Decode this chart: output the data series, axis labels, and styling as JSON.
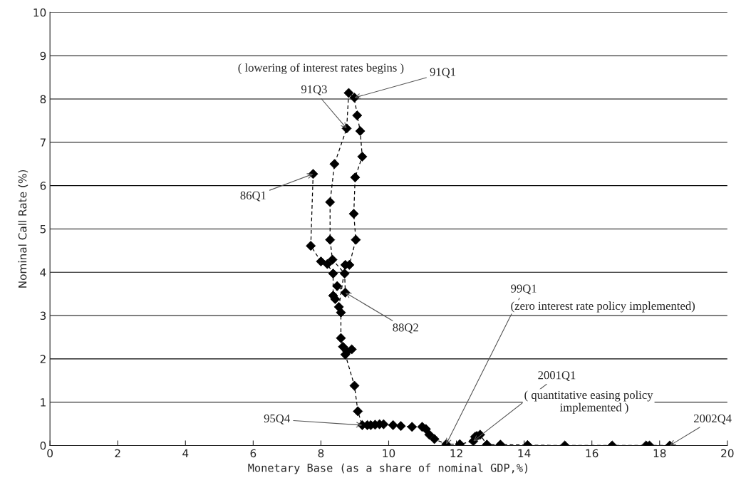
{
  "chart_data": {
    "type": "line",
    "xlabel": "Monetary Base (as a share of nominal GDP,%)",
    "ylabel": "Nominal Call Rate (%)",
    "xlim": [
      0,
      20
    ],
    "ylim": [
      0,
      10
    ],
    "xticks": [
      0,
      2,
      4,
      6,
      8,
      10,
      12,
      14,
      16,
      18,
      20
    ],
    "yticks": [
      0,
      1,
      2,
      3,
      4,
      5,
      6,
      7,
      8,
      9,
      10
    ],
    "grid": "y",
    "marker": "diamond",
    "line_style": "dashed",
    "legend": false,
    "series": [
      {
        "color": "#000000",
        "x": [
          7.77,
          7.7,
          8.0,
          8.19,
          8.36,
          8.36,
          8.42,
          8.48,
          8.72,
          8.7,
          8.34,
          8.27,
          8.27,
          8.4,
          8.76,
          8.82,
          8.99,
          9.07,
          9.16,
          9.22,
          9.01,
          8.97,
          9.03,
          8.84,
          8.72,
          8.53,
          8.59,
          8.59,
          8.65,
          8.78,
          8.91,
          8.72,
          8.99,
          9.09,
          9.22,
          9.37,
          9.47,
          9.6,
          9.73,
          9.85,
          10.13,
          10.36,
          10.69,
          10.99,
          11.1,
          11.2,
          11.35,
          11.7,
          12.1,
          12.5,
          12.55,
          12.6,
          12.7,
          12.9,
          13.3,
          14.1,
          15.2,
          16.6,
          17.6,
          17.7,
          18.3
        ],
        "values": [
          6.27,
          4.61,
          4.25,
          4.19,
          3.97,
          3.46,
          3.38,
          3.68,
          3.53,
          3.97,
          4.29,
          4.75,
          5.62,
          6.5,
          7.32,
          8.14,
          8.03,
          7.62,
          7.26,
          6.67,
          6.19,
          5.35,
          4.75,
          4.17,
          4.17,
          3.2,
          3.07,
          2.48,
          2.28,
          2.17,
          2.22,
          2.1,
          1.38,
          0.79,
          0.47,
          0.47,
          0.47,
          0.48,
          0.49,
          0.49,
          0.47,
          0.45,
          0.43,
          0.43,
          0.38,
          0.25,
          0.15,
          0.03,
          0.03,
          0.1,
          0.2,
          0.22,
          0.25,
          0.02,
          0.02,
          0.01,
          0.0,
          0.0,
          0.0,
          0.0,
          0.0
        ]
      }
    ],
    "annotations": [
      "( lowering of interest rates begins )",
      {
        "text": "91Q3",
        "x": 8.76,
        "y": 7.32
      },
      {
        "text": "91Q1",
        "x": 8.99,
        "y": 8.03
      },
      {
        "text": "86Q1",
        "x": 7.77,
        "y": 6.27
      },
      {
        "text": "88Q2",
        "x": 8.72,
        "y": 3.53
      },
      {
        "text": "99Q1",
        "x": 11.7,
        "y": 0.03
      },
      "(zero interest rate policy implemented)",
      {
        "text": "2001Q1",
        "x": 12.5,
        "y": 0.1
      },
      "( quantitative easing policy\n            implemented )",
      {
        "text": "95Q4",
        "x": 9.22,
        "y": 0.47
      },
      {
        "text": "2002Q4",
        "x": 18.3,
        "y": 0.0
      }
    ]
  }
}
